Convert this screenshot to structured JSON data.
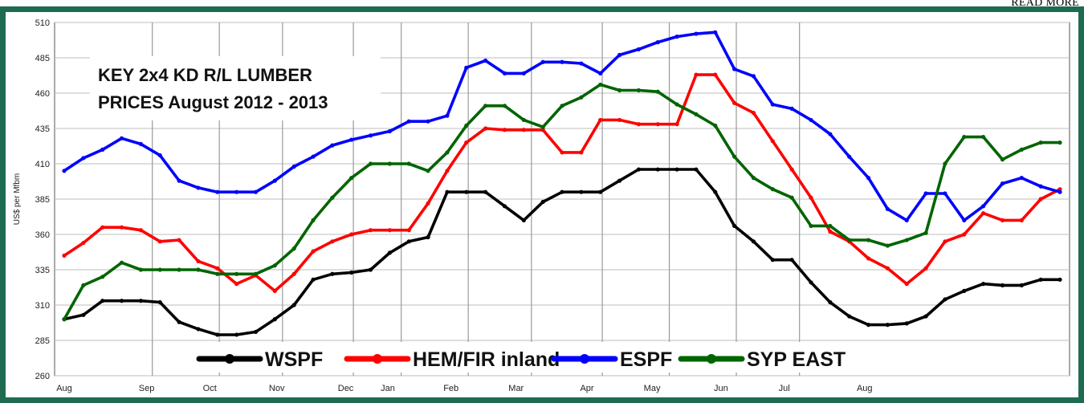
{
  "read_more": "READ MORE",
  "chart_data": {
    "type": "line",
    "title_lines": [
      "KEY 2x4 KD R/L LUMBER",
      "PRICES August 2012 - 2013"
    ],
    "ylabel": "US$ per Mfbm",
    "xlabel": "",
    "ylim": [
      260,
      510
    ],
    "yticks": [
      510,
      485,
      460,
      435,
      410,
      385,
      360,
      335,
      310,
      285,
      260
    ],
    "grid": true,
    "legend_position": "bottom",
    "colors": {
      "WSPF": "#000000",
      "HEM/FIR inland": "#ff0000",
      "ESPF": "#0000ff",
      "SYP EAST": "#006400",
      "frame": "#1f6b4f"
    },
    "x_month_labels": [
      {
        "label": "Aug",
        "w": 0
      },
      {
        "label": "Sep",
        "w": 4.3
      },
      {
        "label": "Oct",
        "w": 7.6
      },
      {
        "label": "Nov",
        "w": 11.1
      },
      {
        "label": "Dec",
        "w": 14.7
      },
      {
        "label": "Jan",
        "w": 16.9
      },
      {
        "label": "Feb",
        "w": 20.2
      },
      {
        "label": "Mar",
        "w": 23.6
      },
      {
        "label": "Apr",
        "w": 27.3
      },
      {
        "label": "May",
        "w": 30.7
      },
      {
        "label": "Jun",
        "w": 34.3
      },
      {
        "label": "Jul",
        "w": 37.6
      },
      {
        "label": "Aug",
        "w": 41.8
      }
    ],
    "vgrid_weeks": [
      4.6,
      8.1,
      11.4,
      15.1,
      17.6,
      21.1,
      24.4,
      28.1,
      31.6,
      35.1,
      38.4
    ],
    "series": [
      {
        "name": "WSPF",
        "values": [
          300,
          303,
          313,
          313,
          313,
          312,
          298,
          293,
          289,
          289,
          291,
          300,
          310,
          328,
          332,
          333,
          335,
          347,
          355,
          358,
          390,
          390,
          390,
          380,
          370,
          383,
          390,
          390,
          390,
          398,
          406,
          406,
          406,
          406,
          390,
          366,
          355,
          342,
          342,
          326,
          312,
          302,
          296,
          296,
          297,
          302,
          314,
          320,
          325,
          324,
          324,
          328,
          328
        ]
      },
      {
        "name": "HEM/FIR inland",
        "values": [
          345,
          354,
          365,
          365,
          363,
          355,
          356,
          341,
          336,
          325,
          331,
          320,
          332,
          348,
          355,
          360,
          363,
          363,
          363,
          382,
          405,
          425,
          435,
          434,
          434,
          434,
          418,
          418,
          441,
          441,
          438,
          438,
          438,
          473,
          473,
          453,
          446,
          426,
          406,
          386,
          362,
          355,
          343,
          336,
          325,
          336,
          355,
          360,
          375,
          370,
          370,
          385,
          392
        ]
      },
      {
        "name": "ESPF",
        "values": [
          405,
          414,
          420,
          428,
          424,
          416,
          398,
          393,
          390,
          390,
          390,
          398,
          408,
          415,
          423,
          427,
          430,
          433,
          440,
          440,
          444,
          478,
          483,
          474,
          474,
          482,
          482,
          481,
          474,
          487,
          491,
          496,
          500,
          502,
          503,
          477,
          472,
          452,
          449,
          441,
          431,
          415,
          400,
          378,
          370,
          389,
          389,
          370,
          380,
          396,
          400,
          394,
          390
        ]
      },
      {
        "name": "SYP EAST",
        "values": [
          300,
          324,
          330,
          340,
          335,
          335,
          335,
          335,
          332,
          332,
          332,
          338,
          350,
          370,
          386,
          400,
          410,
          410,
          410,
          405,
          418,
          437,
          451,
          451,
          441,
          436,
          451,
          457,
          466,
          462,
          462,
          461,
          452,
          445,
          437,
          415,
          400,
          392,
          386,
          366,
          366,
          356,
          356,
          352,
          356,
          361,
          410,
          429,
          429,
          413,
          420,
          425,
          425
        ]
      }
    ]
  }
}
